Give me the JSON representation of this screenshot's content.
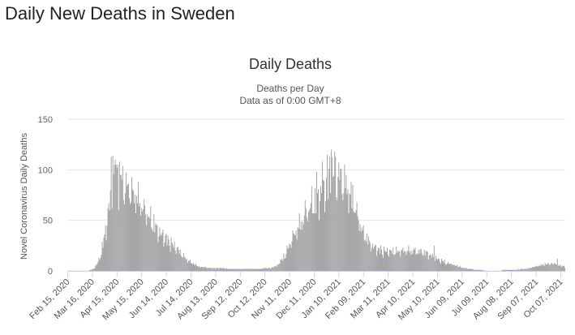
{
  "page": {
    "heading": "Daily New Deaths in Sweden"
  },
  "chart_data": {
    "type": "bar",
    "title": "Daily Deaths",
    "subtitle": "Deaths per Day",
    "subtitle2": "Data as of 0:00 GMT+8",
    "xlabel": "",
    "ylabel": "Novel Coronavirus Daily Deaths",
    "ylim": [
      0,
      150
    ],
    "yticks": [
      0,
      50,
      100,
      150
    ],
    "grid": true,
    "bar_color": "#999999",
    "x_start": "Feb 15, 2020",
    "x_end": "Oct 12, 2021",
    "xticks": [
      "Feb 15, 2020",
      "Mar 16, 2020",
      "Apr 15, 2020",
      "May 15, 2020",
      "Jun 14, 2020",
      "Jul 14, 2020",
      "Aug 13, 2020",
      "Sep 12, 2020",
      "Oct 12, 2020",
      "Nov 11, 2020",
      "Dec 11, 2020",
      "Jan 10, 2021",
      "Feb 09, 2021",
      "Mar 11, 2021",
      "Apr 10, 2021",
      "May 10, 2021",
      "Jun 09, 2021",
      "Jul 09, 2021",
      "Aug 08, 2021",
      "Sep 07, 2021",
      "Oct 07, 2021"
    ],
    "series": [
      {
        "anchors": [
          [
            "Feb 15, 2020",
            0
          ],
          [
            "Mar 10, 2020",
            0
          ],
          [
            "Mar 18, 2020",
            2
          ],
          [
            "Mar 25, 2020",
            12
          ],
          [
            "Apr 01, 2020",
            40
          ],
          [
            "Apr 05, 2020",
            65
          ],
          [
            "Apr 09, 2020",
            85
          ],
          [
            "Apr 14, 2020",
            100
          ],
          [
            "Apr 18, 2020",
            95
          ],
          [
            "Apr 25, 2020",
            85
          ],
          [
            "May 05, 2020",
            80
          ],
          [
            "May 15, 2020",
            68
          ],
          [
            "May 25, 2020",
            55
          ],
          [
            "Jun 05, 2020",
            40
          ],
          [
            "Jun 15, 2020",
            32
          ],
          [
            "Jun 25, 2020",
            25
          ],
          [
            "Jul 05, 2020",
            15
          ],
          [
            "Jul 15, 2020",
            8
          ],
          [
            "Jul 25, 2020",
            4
          ],
          [
            "Aug 05, 2020",
            3
          ],
          [
            "Sep 05, 2020",
            2
          ],
          [
            "Oct 05, 2020",
            2
          ],
          [
            "Oct 20, 2020",
            3
          ],
          [
            "Oct 28, 2020",
            6
          ],
          [
            "Nov 05, 2020",
            15
          ],
          [
            "Nov 15, 2020",
            35
          ],
          [
            "Nov 25, 2020",
            50
          ],
          [
            "Dec 05, 2020",
            65
          ],
          [
            "Dec 15, 2020",
            75
          ],
          [
            "Dec 25, 2020",
            85
          ],
          [
            "Jan 02, 2021",
            95
          ],
          [
            "Jan 10, 2021",
            95
          ],
          [
            "Jan 20, 2021",
            85
          ],
          [
            "Jan 30, 2021",
            65
          ],
          [
            "Feb 08, 2021",
            40
          ],
          [
            "Feb 20, 2021",
            25
          ],
          [
            "Mar 05, 2021",
            20
          ],
          [
            "Mar 20, 2021",
            20
          ],
          [
            "Apr 10, 2021",
            21
          ],
          [
            "Apr 25, 2021",
            19
          ],
          [
            "May 10, 2021",
            12
          ],
          [
            "May 25, 2021",
            7
          ],
          [
            "Jun 10, 2021",
            3
          ],
          [
            "Jun 25, 2021",
            1
          ],
          [
            "Jul 15, 2021",
            0
          ],
          [
            "Aug 08, 2021",
            1
          ],
          [
            "Aug 25, 2021",
            2
          ],
          [
            "Sep 05, 2021",
            4
          ],
          [
            "Sep 20, 2021",
            7
          ],
          [
            "Oct 01, 2021",
            7
          ],
          [
            "Oct 12, 2021",
            4
          ]
        ],
        "peaks": [
          [
            "Apr 08, 2020",
            113
          ],
          [
            "Apr 10, 2020",
            114
          ],
          [
            "Apr 13, 2020",
            110
          ],
          [
            "Apr 16, 2020",
            105
          ],
          [
            "Apr 21, 2020",
            90
          ],
          [
            "Apr 28, 2020",
            86
          ],
          [
            "Nov 30, 2020",
            70
          ],
          [
            "Dec 08, 2020",
            84
          ],
          [
            "Dec 14, 2020",
            98
          ],
          [
            "Dec 21, 2020",
            108
          ],
          [
            "Dec 27, 2020",
            115
          ],
          [
            "Dec 30, 2020",
            113
          ],
          [
            "Jan 01, 2021",
            120
          ],
          [
            "Jan 05, 2021",
            118
          ],
          [
            "Jan 12, 2021",
            101
          ],
          [
            "Jan 19, 2021",
            95
          ],
          [
            "Jan 27, 2021",
            85
          ],
          [
            "Feb 16, 2021",
            30
          ],
          [
            "May 06, 2021",
            25
          ],
          [
            "Oct 03, 2021",
            12
          ]
        ]
      }
    ]
  }
}
